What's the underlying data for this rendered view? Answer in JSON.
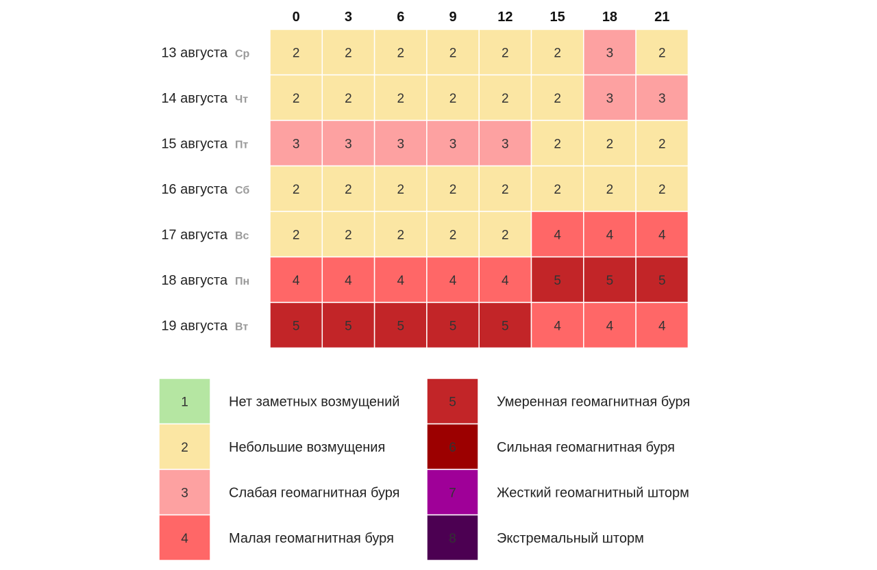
{
  "chart_data": {
    "type": "heatmap",
    "x": [
      "0",
      "3",
      "6",
      "9",
      "12",
      "15",
      "18",
      "21"
    ],
    "rows": [
      {
        "date": "13 августа",
        "dow": "Ср",
        "values": [
          2,
          2,
          2,
          2,
          2,
          2,
          3,
          2
        ]
      },
      {
        "date": "14 августа",
        "dow": "Чт",
        "values": [
          2,
          2,
          2,
          2,
          2,
          2,
          3,
          3
        ]
      },
      {
        "date": "15 августа",
        "dow": "Пт",
        "values": [
          3,
          3,
          3,
          3,
          3,
          2,
          2,
          2
        ]
      },
      {
        "date": "16 августа",
        "dow": "Сб",
        "values": [
          2,
          2,
          2,
          2,
          2,
          2,
          2,
          2
        ]
      },
      {
        "date": "17 августа",
        "dow": "Вс",
        "values": [
          2,
          2,
          2,
          2,
          2,
          4,
          4,
          4
        ]
      },
      {
        "date": "18 августа",
        "dow": "Пн",
        "values": [
          4,
          4,
          4,
          4,
          4,
          5,
          5,
          5
        ]
      },
      {
        "date": "19 августа",
        "dow": "Вт",
        "values": [
          5,
          5,
          5,
          5,
          5,
          4,
          4,
          4
        ]
      }
    ],
    "legend": [
      {
        "level": "1",
        "label": "Нет заметных возмущений",
        "color": "#b5e6a2"
      },
      {
        "level": "2",
        "label": "Небольшие возмущения",
        "color": "#fbe6a3"
      },
      {
        "level": "3",
        "label": "Слабая геомагнитная буря",
        "color": "#fda1a1"
      },
      {
        "level": "4",
        "label": "Малая геомагнитная буря",
        "color": "#ff6767"
      },
      {
        "level": "5",
        "label": "Умеренная геомагнитная буря",
        "color": "#c22528"
      },
      {
        "level": "6",
        "label": "Сильная геомагнитная буря",
        "color": "#9c0000"
      },
      {
        "level": "7",
        "label": "Жесткий геомагнитный шторм",
        "color": "#9f0098"
      },
      {
        "level": "8",
        "label": "Экстремальный шторм",
        "color": "#4c0052"
      }
    ]
  }
}
